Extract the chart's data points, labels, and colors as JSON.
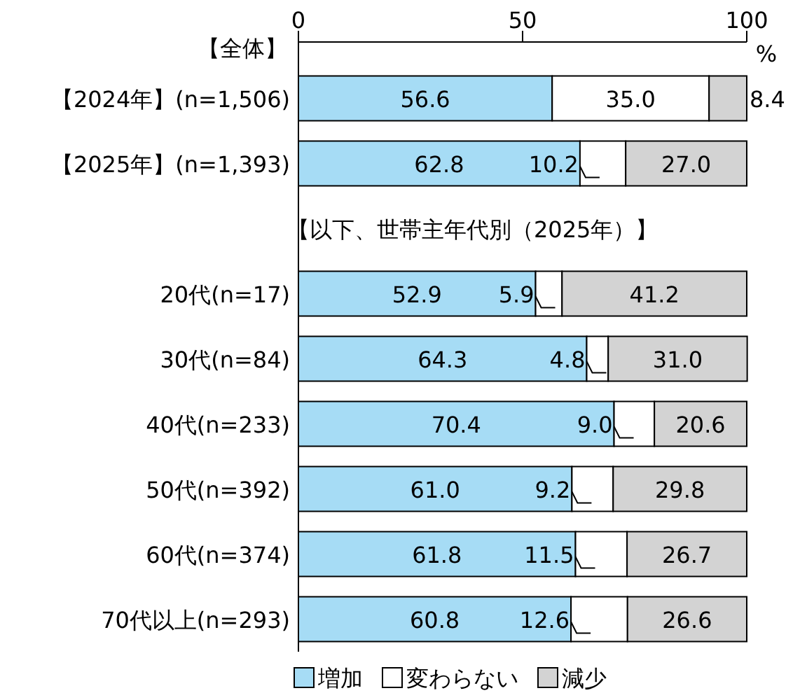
{
  "chart_data": {
    "type": "bar",
    "orientation": "horizontal",
    "stacked": true,
    "categories": [
      "【2024年】(n=1,506)",
      "【2025年】(n=1,393)",
      null,
      "20代(n=17)",
      "30代(n=84)",
      "40代(n=233)",
      "50代(n=392)",
      "60代(n=374)",
      "70代以上(n=293)"
    ],
    "series": [
      {
        "name": "増加",
        "color": "#a6dcf5",
        "values": [
          56.6,
          62.8,
          null,
          52.9,
          64.3,
          70.4,
          61.0,
          61.8,
          60.8
        ],
        "value_labels": [
          "56.6",
          "62.8",
          null,
          "52.9",
          "64.3",
          "70.4",
          "61.0",
          "61.8",
          "60.8"
        ]
      },
      {
        "name": "変わらない",
        "color": "#ffffff",
        "values": [
          35.0,
          10.2,
          null,
          5.9,
          4.8,
          9.0,
          9.2,
          11.5,
          12.6
        ],
        "value_labels": [
          "35.0",
          "10.2",
          null,
          "5.9",
          "4.8",
          "9.0",
          "9.2",
          "11.5",
          "12.6"
        ]
      },
      {
        "name": "減少",
        "color": "#d3d3d3",
        "values": [
          8.4,
          27.0,
          null,
          41.2,
          31.0,
          20.6,
          29.8,
          26.7,
          26.6
        ],
        "value_labels": [
          "8.4",
          "27.0",
          null,
          "41.2",
          "31.0",
          "20.6",
          "29.8",
          "26.7",
          "26.6"
        ]
      }
    ],
    "xlim": [
      0,
      100
    ],
    "xticks": [
      0,
      50,
      100
    ],
    "xlabel": "%",
    "legend": "bottom",
    "annotations": [
      "【全体】",
      "【以下、世帯主年代別（2025年）】"
    ]
  }
}
